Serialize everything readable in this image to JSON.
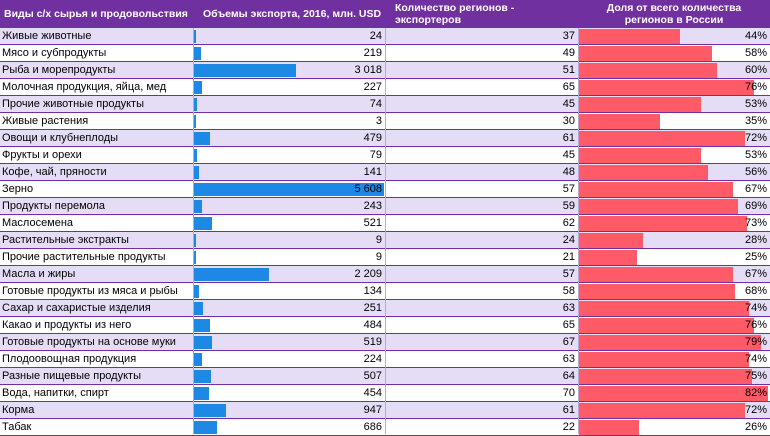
{
  "table": {
    "headers": [
      "Виды с/х сырья и продовольствия",
      "Объемы экспорта, 2016, млн. USD",
      "Количество регионов - экспортеров",
      "Доля от всего количества регионов в России"
    ],
    "colors": {
      "header_bg": "#7030A0",
      "row_alt": "#E5DDF5",
      "export_bar": "#1E88E5",
      "share_bar": "#FF5A68"
    },
    "max_export": 5608
  },
  "chart_data": {
    "type": "table",
    "rows": [
      {
        "name": "Живые животные",
        "export": 24,
        "export_label": "24",
        "regions": 37,
        "share": 44,
        "share_label": "44%"
      },
      {
        "name": "Мясо и субпродукты",
        "export": 219,
        "export_label": "219",
        "regions": 49,
        "share": 58,
        "share_label": "58%"
      },
      {
        "name": "Рыба и морепродукты",
        "export": 3018,
        "export_label": "3 018",
        "regions": 51,
        "share": 60,
        "share_label": "60%"
      },
      {
        "name": "Молочная продукция, яйца, мед",
        "export": 227,
        "export_label": "227",
        "regions": 65,
        "share": 76,
        "share_label": "76%"
      },
      {
        "name": "Прочие животные продукты",
        "export": 74,
        "export_label": "74",
        "regions": 45,
        "share": 53,
        "share_label": "53%"
      },
      {
        "name": "Живые растения",
        "export": 3,
        "export_label": "3",
        "regions": 30,
        "share": 35,
        "share_label": "35%"
      },
      {
        "name": "Овощи и клубнеплоды",
        "export": 479,
        "export_label": "479",
        "regions": 61,
        "share": 72,
        "share_label": "72%"
      },
      {
        "name": "Фрукты и орехи",
        "export": 79,
        "export_label": "79",
        "regions": 45,
        "share": 53,
        "share_label": "53%"
      },
      {
        "name": "Кофе, чай, пряности",
        "export": 141,
        "export_label": "141",
        "regions": 48,
        "share": 56,
        "share_label": "56%"
      },
      {
        "name": "Зерно",
        "export": 5608,
        "export_label": "5 608",
        "regions": 57,
        "share": 67,
        "share_label": "67%"
      },
      {
        "name": "Продукты перемола",
        "export": 243,
        "export_label": "243",
        "regions": 59,
        "share": 69,
        "share_label": "69%"
      },
      {
        "name": "Масло­семена",
        "export": 521,
        "export_label": "521",
        "regions": 62,
        "share": 73,
        "share_label": "73%"
      },
      {
        "name": "Растительные экстракты",
        "export": 9,
        "export_label": "9",
        "regions": 24,
        "share": 28,
        "share_label": "28%"
      },
      {
        "name": "Прочие растительные продукты",
        "export": 9,
        "export_label": "9",
        "regions": 21,
        "share": 25,
        "share_label": "25%"
      },
      {
        "name": "Масла и жиры",
        "export": 2209,
        "export_label": "2 209",
        "regions": 57,
        "share": 67,
        "share_label": "67%"
      },
      {
        "name": "Готовые продукты из мяса и рыбы",
        "export": 134,
        "export_label": "134",
        "regions": 58,
        "share": 68,
        "share_label": "68%"
      },
      {
        "name": "Сахар и сахаристые изделия",
        "export": 251,
        "export_label": "251",
        "regions": 63,
        "share": 74,
        "share_label": "74%"
      },
      {
        "name": "Какао и продукты из него",
        "export": 484,
        "export_label": "484",
        "regions": 65,
        "share": 76,
        "share_label": "76%"
      },
      {
        "name": "Готовые продукты на основе муки",
        "export": 519,
        "export_label": "519",
        "regions": 67,
        "share": 79,
        "share_label": "79%"
      },
      {
        "name": "Плодоовощная продукция",
        "export": 224,
        "export_label": "224",
        "regions": 63,
        "share": 74,
        "share_label": "74%"
      },
      {
        "name": "Разные пищевые продукты",
        "export": 507,
        "export_label": "507",
        "regions": 64,
        "share": 75,
        "share_label": "75%"
      },
      {
        "name": "Вода, напитки, спирт",
        "export": 454,
        "export_label": "454",
        "regions": 70,
        "share": 82,
        "share_label": "82%"
      },
      {
        "name": "Корма",
        "export": 947,
        "export_label": "947",
        "regions": 61,
        "share": 72,
        "share_label": "72%"
      },
      {
        "name": "Табак",
        "export": 686,
        "export_label": "686",
        "regions": 22,
        "share": 26,
        "share_label": "26%"
      }
    ]
  }
}
